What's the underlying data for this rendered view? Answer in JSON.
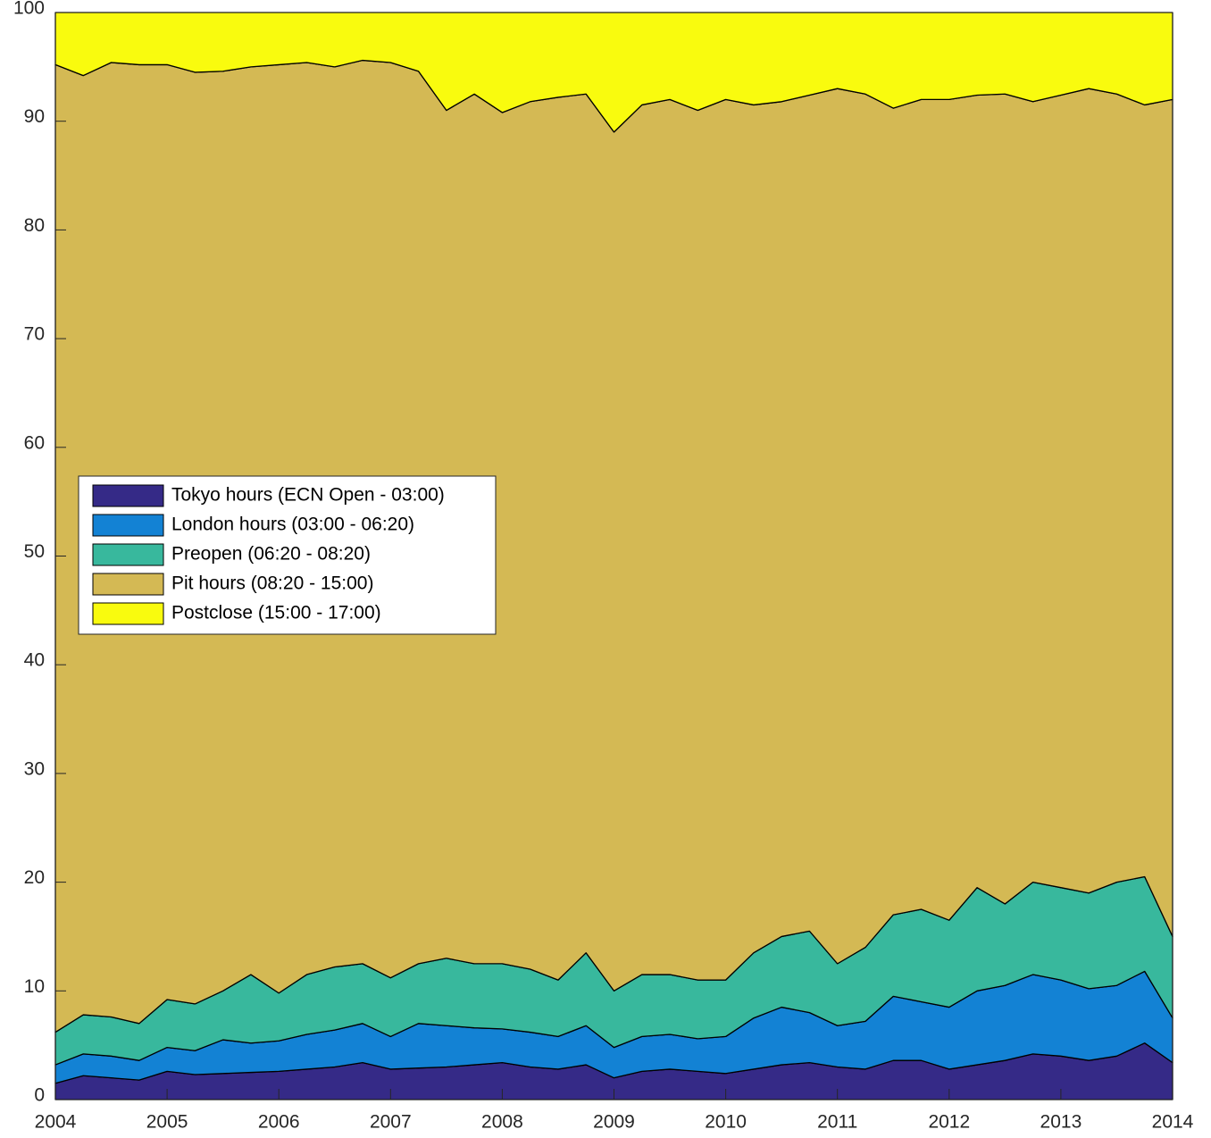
{
  "chart_data": {
    "type": "stacked_area",
    "x": [
      2004,
      2004.25,
      2004.5,
      2004.75,
      2005,
      2005.25,
      2005.5,
      2005.75,
      2006,
      2006.25,
      2006.5,
      2006.75,
      2007,
      2007.25,
      2007.5,
      2007.75,
      2008,
      2008.25,
      2008.5,
      2008.75,
      2009,
      2009.25,
      2009.5,
      2009.75,
      2010,
      2010.25,
      2010.5,
      2010.75,
      2011,
      2011.25,
      2011.5,
      2011.75,
      2012,
      2012.25,
      2012.5,
      2012.75,
      2013,
      2013.25,
      2013.5,
      2013.75,
      2014
    ],
    "series": [
      {
        "name": "Tokyo hours (ECN Open - 03:00)",
        "color": "#352a87",
        "values": [
          1.5,
          2.2,
          2.0,
          1.8,
          2.6,
          2.3,
          2.4,
          2.5,
          2.6,
          2.8,
          3.0,
          3.4,
          2.8,
          2.9,
          3.0,
          3.2,
          3.4,
          3.0,
          2.8,
          3.2,
          2.0,
          2.6,
          2.8,
          2.6,
          2.4,
          2.8,
          3.2,
          3.4,
          3.0,
          2.8,
          3.6,
          3.6,
          2.8,
          3.2,
          3.6,
          4.2,
          4.0,
          3.6,
          4.0,
          5.2,
          3.4
        ]
      },
      {
        "name": "London hours (03:00 - 06:20)",
        "color": "#1382d4",
        "values": [
          1.7,
          2.0,
          2.0,
          1.8,
          2.2,
          2.2,
          3.1,
          2.7,
          2.8,
          3.2,
          3.4,
          3.6,
          3.0,
          4.1,
          3.8,
          3.4,
          3.1,
          3.2,
          3.0,
          3.6,
          2.8,
          3.2,
          3.2,
          3.0,
          3.4,
          4.7,
          5.3,
          4.6,
          3.8,
          4.4,
          5.9,
          5.4,
          5.7,
          6.8,
          6.9,
          7.3,
          7.0,
          6.6,
          6.5,
          6.6,
          4.1
        ]
      },
      {
        "name": "Preopen (06:20 - 08:20)",
        "color": "#38b89d",
        "values": [
          3.0,
          3.6,
          3.6,
          3.4,
          4.4,
          4.3,
          4.5,
          6.3,
          4.4,
          5.5,
          5.8,
          5.5,
          5.4,
          5.5,
          6.2,
          5.9,
          6.0,
          5.8,
          5.2,
          6.7,
          5.2,
          5.7,
          5.5,
          5.4,
          5.2,
          6.0,
          6.5,
          7.5,
          5.7,
          6.8,
          7.5,
          8.5,
          8.0,
          9.5,
          7.5,
          8.5,
          8.5,
          8.8,
          9.5,
          8.7,
          7.5
        ]
      },
      {
        "name": "Pit hours (08:20 - 15:00)",
        "color": "#d4b954",
        "values": [
          89.0,
          86.4,
          87.8,
          88.2,
          86.0,
          85.7,
          84.6,
          83.5,
          85.4,
          83.9,
          82.8,
          83.1,
          84.2,
          82.1,
          78.0,
          80.0,
          78.3,
          79.8,
          81.2,
          79.0,
          79.0,
          80.0,
          80.5,
          80.0,
          81.0,
          78.0,
          76.8,
          76.9,
          80.5,
          78.5,
          74.2,
          74.5,
          75.5,
          72.9,
          74.5,
          71.8,
          72.9,
          74.0,
          72.5,
          71.0,
          77.0
        ]
      },
      {
        "name": "Postclose (15:00 - 17:00)",
        "color": "#f9fb0e",
        "values": [
          4.8,
          5.8,
          4.6,
          4.8,
          4.8,
          5.5,
          5.4,
          5.0,
          4.8,
          4.6,
          5.0,
          4.4,
          4.6,
          5.4,
          9.0,
          7.5,
          9.2,
          8.2,
          7.8,
          7.5,
          11.0,
          8.5,
          8.0,
          9.0,
          8.0,
          8.5,
          8.2,
          7.6,
          7.0,
          7.5,
          8.8,
          8.0,
          8.0,
          7.6,
          7.5,
          8.2,
          7.6,
          7.0,
          7.5,
          8.5,
          8.0
        ]
      }
    ],
    "xlim": [
      2004,
      2014
    ],
    "xticks": [
      2004,
      2005,
      2006,
      2007,
      2008,
      2009,
      2010,
      2011,
      2012,
      2013,
      2014
    ],
    "ylim": [
      0,
      100
    ],
    "yticks": [
      0,
      10,
      20,
      30,
      40,
      50,
      60,
      70,
      80,
      90,
      100
    ],
    "legend": "middle-left"
  }
}
